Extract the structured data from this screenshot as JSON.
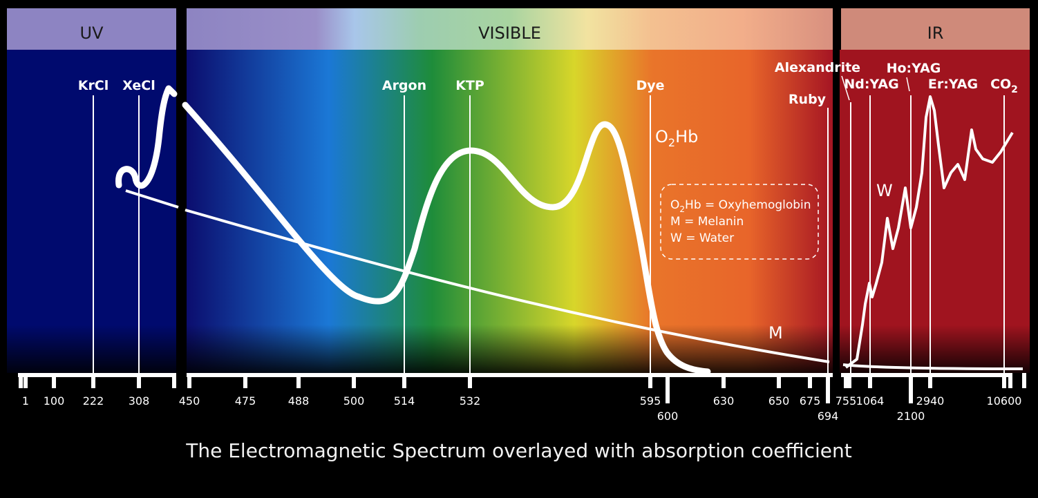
{
  "caption": "The Electromagnetic Spectrum overlayed with absorption coefficient",
  "regions": [
    {
      "key": "uv",
      "label": "UV"
    },
    {
      "key": "visible",
      "label": "VISIBLE"
    },
    {
      "key": "ir",
      "label": "IR"
    }
  ],
  "colors": {
    "uv_band": "#000a6e",
    "visible_stops": [
      "#0b0d6e",
      "#1b78d6",
      "#1e8c3a",
      "#d8d62a",
      "#e9752a",
      "#e8652a",
      "#a51523"
    ],
    "ir_band": "#a0141f",
    "uv_header": "#8d84c2",
    "ir_header": "#cf8a7a",
    "curve": "#ffffff",
    "text": "#ffffff"
  },
  "lasers": [
    {
      "label": "KrCl",
      "wavelength": "222"
    },
    {
      "label": "XeCl",
      "wavelength": "308"
    },
    {
      "label": "Argon",
      "wavelength": "514"
    },
    {
      "label": "KTP",
      "wavelength": "532"
    },
    {
      "label": "Dye",
      "wavelength": "595"
    },
    {
      "label": "Ruby",
      "wavelength": "694"
    },
    {
      "label": "Alexandrite",
      "wavelength": "755"
    },
    {
      "label": "Nd:YAG",
      "wavelength": "1064"
    },
    {
      "label": "Ho:YAG",
      "wavelength": "2100"
    },
    {
      "label": "Er:YAG",
      "wavelength": "2940"
    },
    {
      "label": "CO",
      "sub": "2",
      "wavelength": "10600"
    }
  ],
  "axis_ticks": {
    "uv": [
      "1",
      "100",
      "222",
      "308"
    ],
    "visible": [
      "450",
      "475",
      "488",
      "500",
      "514",
      "532",
      "595",
      "600",
      "630",
      "650",
      "675",
      "694"
    ],
    "ir": [
      "755",
      "1064",
      "2100",
      "2940",
      "10600"
    ]
  },
  "curve_labels": {
    "o2hb": {
      "main": "O",
      "sub": "2",
      "rest": "Hb"
    },
    "melanin": "M",
    "water": "W"
  },
  "legend": [
    {
      "main": "O",
      "sub": "2",
      "rest": "Hb = Oxyhemoglobin"
    },
    {
      "main": "",
      "sub": "",
      "rest": "M = Melanin"
    },
    {
      "main": "",
      "sub": "",
      "rest": "W = Water"
    }
  ],
  "chart_data": {
    "type": "line",
    "title": "The Electromagnetic Spectrum overlayed with absorption coefficient",
    "xlabel": "",
    "ylabel": "",
    "x_unit": "nm",
    "x_scale": "piecewise (UV / VISIBLE / IR segments)",
    "series": [
      {
        "name": "O2Hb",
        "curve": "o2hb"
      },
      {
        "name": "M",
        "curve": "melanin"
      },
      {
        "name": "W",
        "curve": "water"
      }
    ],
    "grid": false,
    "legend_position": "center-right"
  }
}
